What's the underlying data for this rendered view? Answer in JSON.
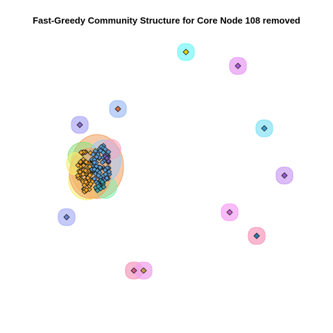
{
  "title": "Fast-Greedy Community Structure for Core Node 108 removed",
  "isolated_nodes": [
    {
      "id": "n1",
      "fill": "#e6d800",
      "halo": "#7ff7f7"
    },
    {
      "id": "n2",
      "fill": "#b45cd6",
      "halo": "#e8a0f4"
    },
    {
      "id": "n3",
      "fill": "#e06a3a",
      "halo": "#a8c4f4"
    },
    {
      "id": "n4",
      "fill": "#8a6ad8",
      "halo": "#b4b0f8"
    },
    {
      "id": "n5",
      "fill": "#3aa0d6",
      "halo": "#8ee4f4"
    },
    {
      "id": "n6",
      "fill": "#9a5ad0",
      "halo": "#d0a6f4"
    },
    {
      "id": "n7",
      "fill": "#d060d6",
      "halo": "#f6a6f4"
    },
    {
      "id": "n8",
      "fill": "#6a80d8",
      "halo": "#b2b8f8"
    },
    {
      "id": "n9",
      "fill": "#2a7ab0",
      "halo": "#f8a0c0"
    },
    {
      "id": "n10",
      "fill": "#d85a8a",
      "halo": "#f6a0c0"
    },
    {
      "id": "n11",
      "fill": "#d0a040",
      "halo": "#f2a6ec"
    }
  ],
  "core_cluster": {
    "halos": [
      "#f2a060",
      "#8ae07a",
      "#f4f070",
      "#7af0b0",
      "#a0c8f4",
      "#f2a6c4"
    ],
    "node_fills": [
      "#f0a830",
      "#5aa0d8",
      "#3aa0b0",
      "#7a60c0"
    ]
  }
}
